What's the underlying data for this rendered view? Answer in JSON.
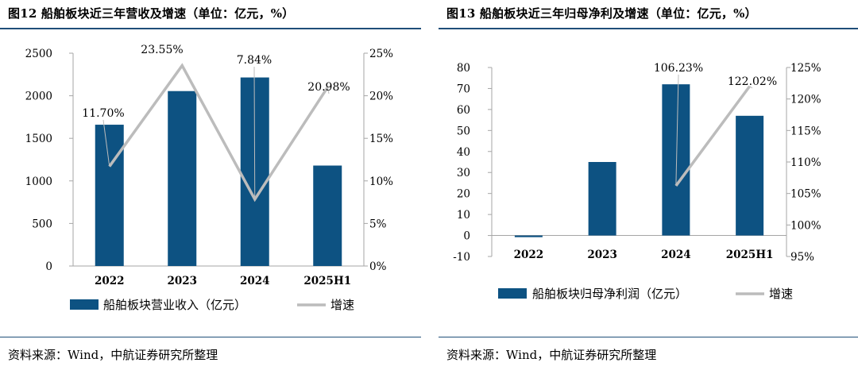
{
  "colors": {
    "bar": "#0d5282",
    "line": "#bcbcbc",
    "rule": "#1f4e79",
    "axis": "#a6a6a6"
  },
  "left_panel": {
    "title": "图12 船舶板块近三年营收及增速（单位：亿元，%）",
    "source": "资料来源：Wind，中航证券研究所整理"
  },
  "right_panel": {
    "title": "图13 船舶板块近三年归母净利及增速（单位：亿元，%）",
    "source": "资料来源：Wind，中航证券研究所整理"
  },
  "chart_data": [
    {
      "type": "bar",
      "title": "船舶板块近三年营收及增速",
      "categories": [
        "2022",
        "2023",
        "2024",
        "2025H1"
      ],
      "series": [
        {
          "name": "船舶板块营业收入（亿元）",
          "kind": "bar",
          "axis": "left",
          "values": [
            1660,
            2055,
            2215,
            1180
          ]
        },
        {
          "name": "增速",
          "kind": "line",
          "axis": "right",
          "values": [
            11.7,
            23.55,
            7.84,
            20.98
          ],
          "labels": [
            "11.70%",
            "23.55%",
            "7.84%",
            "20.98%"
          ]
        }
      ],
      "ylim": [
        0,
        2500
      ],
      "yticks": [
        "2500",
        "2000",
        "1500",
        "1000",
        "500",
        "0"
      ],
      "y2lim": [
        0,
        25
      ],
      "y2ticks": [
        "25%",
        "20%",
        "15%",
        "10%",
        "5%",
        "0%"
      ]
    },
    {
      "type": "bar",
      "title": "船舶板块近三年归母净利及增速",
      "categories": [
        "2022",
        "2023",
        "2024",
        "2025H1"
      ],
      "series": [
        {
          "name": "船舶板块归母净利润（亿元）",
          "kind": "bar",
          "axis": "left",
          "values": [
            -0.8,
            35,
            72,
            57
          ]
        },
        {
          "name": "增速",
          "kind": "line",
          "axis": "right",
          "values": [
            null,
            null,
            106.23,
            122.02
          ],
          "labels": [
            "",
            "",
            "106.23%",
            "122.02%"
          ]
        }
      ],
      "ylim": [
        -10,
        80
      ],
      "yticks": [
        "80",
        "70",
        "60",
        "50",
        "40",
        "30",
        "20",
        "10",
        "0",
        "-10"
      ],
      "y2lim": [
        95,
        125
      ],
      "y2ticks": [
        "125%",
        "120%",
        "115%",
        "110%",
        "105%",
        "100%",
        "95%"
      ]
    }
  ]
}
